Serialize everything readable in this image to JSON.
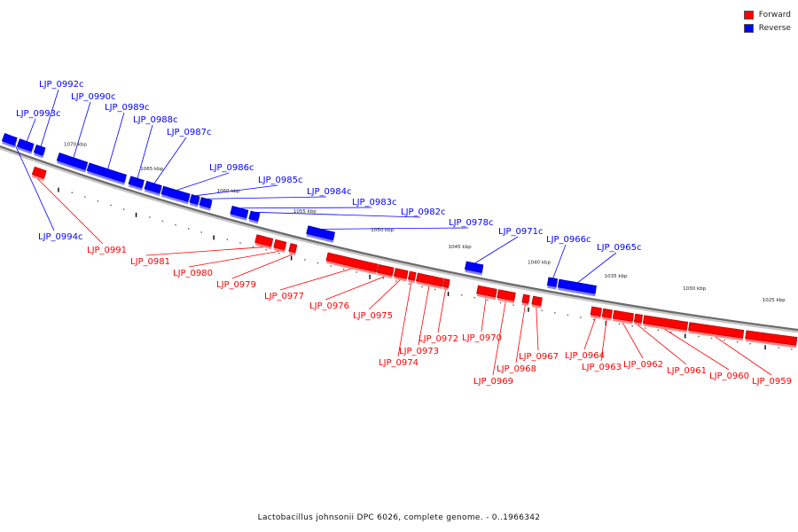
{
  "legend": [
    {
      "label": "Forward",
      "color": "#ff0000"
    },
    {
      "label": "Reverse",
      "color": "#0000ff"
    }
  ],
  "caption": "Lactobacillus johnsonii DPC 6026, complete genome. - 0..1966342",
  "kbp_labels": [
    "1070 kbp",
    "1065 kbp",
    "1060 kbp",
    "1055 kbp",
    "1050 kbp",
    "1045 kbp",
    "1040 kbp",
    "1035 kbp",
    "1030 kbp",
    "1025 kbp"
  ],
  "genes": [
    {
      "name": "LJP_0959",
      "strand": "forward"
    },
    {
      "name": "LJP_0960",
      "strand": "forward"
    },
    {
      "name": "LJP_0961",
      "strand": "forward"
    },
    {
      "name": "LJP_0962",
      "strand": "forward"
    },
    {
      "name": "LJP_0963",
      "strand": "forward"
    },
    {
      "name": "LJP_0964",
      "strand": "forward"
    },
    {
      "name": "LJP_0965c",
      "strand": "reverse"
    },
    {
      "name": "LJP_0966c",
      "strand": "reverse"
    },
    {
      "name": "LJP_0967",
      "strand": "forward"
    },
    {
      "name": "LJP_0968",
      "strand": "forward"
    },
    {
      "name": "LJP_0969",
      "strand": "forward"
    },
    {
      "name": "LJP_0970",
      "strand": "forward"
    },
    {
      "name": "LJP_0971c",
      "strand": "reverse"
    },
    {
      "name": "LJP_0972",
      "strand": "forward"
    },
    {
      "name": "LJP_0973",
      "strand": "forward"
    },
    {
      "name": "LJP_0974",
      "strand": "forward"
    },
    {
      "name": "LJP_0975",
      "strand": "forward"
    },
    {
      "name": "LJP_0976",
      "strand": "forward"
    },
    {
      "name": "LJP_0977",
      "strand": "forward"
    },
    {
      "name": "LJP_0978c",
      "strand": "reverse"
    },
    {
      "name": "LJP_0979",
      "strand": "forward"
    },
    {
      "name": "LJP_0980",
      "strand": "forward"
    },
    {
      "name": "LJP_0981",
      "strand": "forward"
    },
    {
      "name": "LJP_0982c",
      "strand": "reverse"
    },
    {
      "name": "LJP_0983c",
      "strand": "reverse"
    },
    {
      "name": "LJP_0984c",
      "strand": "reverse"
    },
    {
      "name": "LJP_0985c",
      "strand": "reverse"
    },
    {
      "name": "LJP_0986c",
      "strand": "reverse"
    },
    {
      "name": "LJP_0987c",
      "strand": "reverse"
    },
    {
      "name": "LJP_0988c",
      "strand": "reverse"
    },
    {
      "name": "LJP_0989c",
      "strand": "reverse"
    },
    {
      "name": "LJP_0990c",
      "strand": "reverse"
    },
    {
      "name": "LJP_0991",
      "strand": "forward"
    },
    {
      "name": "LJP_0992c",
      "strand": "reverse"
    },
    {
      "name": "LJP_0993c",
      "strand": "reverse"
    },
    {
      "name": "LJP_0994c",
      "strand": "reverse"
    }
  ]
}
